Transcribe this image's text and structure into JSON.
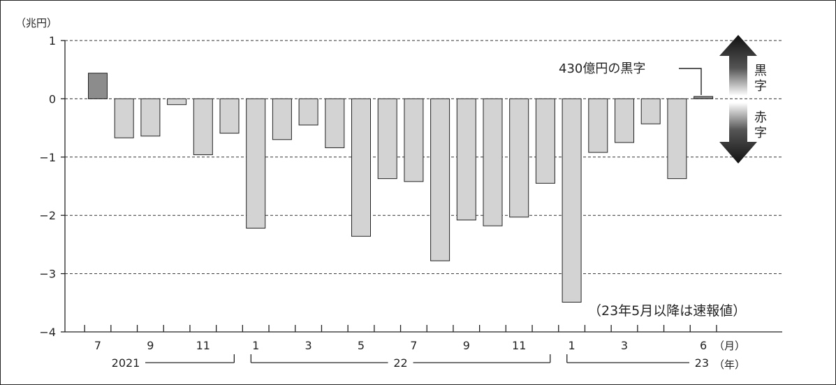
{
  "chart_data": {
    "type": "bar",
    "y_unit_label": "（兆円）",
    "ylim": [
      -4,
      1
    ],
    "y_ticks": [
      1,
      0,
      -1,
      -2,
      -3,
      -4
    ],
    "y_tick_labels": [
      "1",
      "0",
      "−1",
      "−2",
      "−3",
      "−4"
    ],
    "grid": "horizontal-dashed",
    "months": [
      7,
      8,
      9,
      10,
      11,
      12,
      1,
      2,
      3,
      4,
      5,
      6,
      7,
      8,
      9,
      10,
      11,
      12,
      1,
      2,
      3,
      4,
      5,
      6
    ],
    "values": [
      0.44,
      -0.67,
      -0.64,
      -0.1,
      -0.96,
      -0.59,
      -2.22,
      -0.7,
      -0.45,
      -0.84,
      -2.36,
      -1.37,
      -1.42,
      -2.78,
      -2.08,
      -2.18,
      -2.03,
      -1.45,
      -3.49,
      -0.92,
      -0.75,
      -0.43,
      -1.37,
      0.04
    ],
    "x_tick_labels": [
      {
        "index": 0,
        "text": "7"
      },
      {
        "index": 2,
        "text": "9"
      },
      {
        "index": 4,
        "text": "11"
      },
      {
        "index": 6,
        "text": "1"
      },
      {
        "index": 8,
        "text": "3"
      },
      {
        "index": 10,
        "text": "5"
      },
      {
        "index": 12,
        "text": "7"
      },
      {
        "index": 14,
        "text": "9"
      },
      {
        "index": 16,
        "text": "11"
      },
      {
        "index": 18,
        "text": "1"
      },
      {
        "index": 20,
        "text": "3"
      },
      {
        "index": 23,
        "text": "6"
      }
    ],
    "month_unit_label": "（月）",
    "year_unit_label": "（年）",
    "years": [
      {
        "label": "2021",
        "start": 0,
        "end": 5
      },
      {
        "label": "22",
        "start": 6,
        "end": 17
      },
      {
        "label": "23",
        "start": 18,
        "end": 23
      }
    ],
    "annotations": {
      "surplus_note": "430億円の黒字",
      "preliminary_note": "（23年5月以降は速報値）",
      "surplus_arrow_label": "黒字",
      "deficit_arrow_label": "赤字"
    },
    "colors": {
      "surplus_bar": "#8c8c8c",
      "deficit_bar": "#d3d3d3",
      "bar_stroke": "#222222"
    }
  }
}
